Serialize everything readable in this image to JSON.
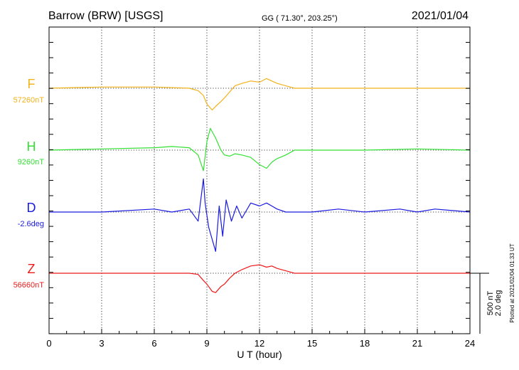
{
  "header": {
    "station": "Barrow (BRW)  [USGS]",
    "coords": "GG ( 71.30°, 203.25°)",
    "date": "2021/01/04"
  },
  "side_note": "Plotted at 2021/02/04 01:33 UT",
  "scale": {
    "nt": "500 nT",
    "deg": "2.0 deg"
  },
  "chart_data": {
    "type": "line",
    "title": "Barrow (BRW)  [USGS]",
    "xlabel": "U T (hour)",
    "ylabel": "",
    "xlim": [
      0,
      24
    ],
    "x_ticks": [
      "0",
      "3",
      "6",
      "9",
      "12",
      "15",
      "18",
      "21",
      "24"
    ],
    "grid": true,
    "series": [
      {
        "name": "F",
        "baseline_label": "57260nT",
        "color": "#f2b21a",
        "unit": "nT",
        "x": [
          0,
          3,
          6,
          8,
          8.5,
          8.8,
          9.0,
          9.3,
          9.5,
          9.8,
          10.0,
          10.3,
          10.6,
          11.0,
          11.5,
          12.0,
          12.4,
          12.7,
          13.0,
          13.5,
          14.0,
          15,
          18,
          21,
          24
        ],
        "values": [
          0,
          10,
          10,
          0,
          -20,
          -60,
          -130,
          -180,
          -150,
          -110,
          -80,
          -30,
          20,
          40,
          60,
          50,
          80,
          60,
          40,
          20,
          0,
          0,
          0,
          0,
          0
        ]
      },
      {
        "name": "H",
        "baseline_label": "9260nT",
        "color": "#33e133",
        "unit": "nT",
        "x": [
          0,
          3,
          6,
          7,
          8,
          8.5,
          8.8,
          9.0,
          9.2,
          9.5,
          9.8,
          10.0,
          10.3,
          10.6,
          11.0,
          11.5,
          12.0,
          12.4,
          12.7,
          13.0,
          13.5,
          14.0,
          15,
          18,
          21,
          24
        ],
        "values": [
          0,
          10,
          20,
          30,
          20,
          -40,
          -170,
          70,
          180,
          100,
          0,
          -40,
          -50,
          -30,
          -40,
          -60,
          -120,
          -150,
          -100,
          -70,
          -40,
          0,
          0,
          0,
          10,
          0
        ]
      },
      {
        "name": "D",
        "baseline_label": "-2.6deg",
        "color": "#1a1ae0",
        "unit": "deg",
        "x": [
          0,
          3,
          6,
          7,
          8,
          8.5,
          8.8,
          8.9,
          9.1,
          9.3,
          9.5,
          9.7,
          9.9,
          10.1,
          10.4,
          10.7,
          11.0,
          11.5,
          12.0,
          12.4,
          12.7,
          13.0,
          13.5,
          14.0,
          15,
          16.5,
          18,
          20,
          21,
          22,
          24
        ],
        "values": [
          0,
          0,
          0.1,
          0,
          0.1,
          -0.3,
          1.1,
          0.3,
          -0.5,
          -0.9,
          -1.3,
          0.2,
          -0.8,
          0.4,
          -0.3,
          0.2,
          -0.2,
          0.3,
          0.2,
          0.3,
          0.2,
          0.1,
          0.0,
          0.0,
          0.0,
          0.1,
          0.0,
          0.1,
          0.0,
          0.1,
          0.0
        ]
      },
      {
        "name": "Z",
        "baseline_label": "56660nT",
        "color": "#ee1a1a",
        "unit": "nT",
        "x": [
          0,
          3,
          6,
          8,
          8.5,
          8.8,
          9.0,
          9.3,
          9.5,
          9.8,
          10.0,
          10.3,
          10.6,
          11.0,
          11.5,
          12.0,
          12.4,
          12.7,
          13.0,
          13.5,
          14.0,
          15,
          18,
          21,
          24
        ],
        "values": [
          0,
          0,
          0,
          0,
          -10,
          -60,
          -90,
          -150,
          -160,
          -110,
          -90,
          -40,
          0,
          30,
          60,
          70,
          50,
          60,
          40,
          20,
          0,
          0,
          0,
          0,
          0
        ]
      }
    ]
  }
}
